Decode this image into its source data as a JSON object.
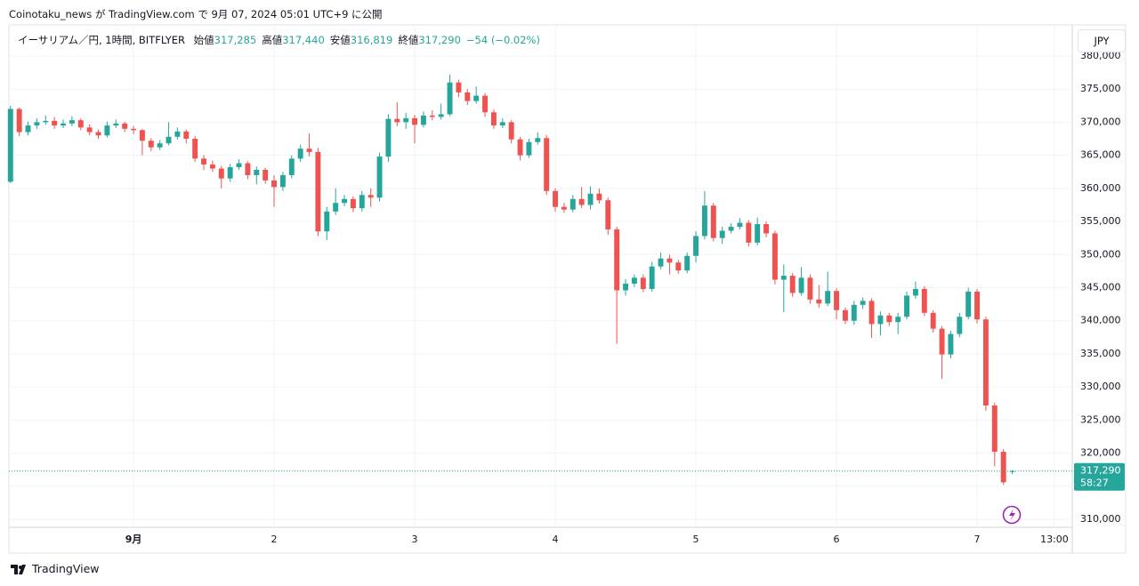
{
  "attribution": "Coinotaku_news が TradingView.com で 9月 07, 2024 05:01 UTC+9 に公開",
  "footer": "TradingView",
  "currency_button": "JPY",
  "chart_data": {
    "type": "candlestick",
    "symbol": "イーサリアム／円, 1時間, BITFLYER",
    "ohlc_legend": [
      {
        "label": "始値",
        "value": "317,285"
      },
      {
        "label": "高値",
        "value": "317,440"
      },
      {
        "label": "安値",
        "value": "316,819"
      },
      {
        "label": "終値",
        "value": "317,290"
      }
    ],
    "change": "−54 (−0.02%)",
    "last_price_label": "317,290",
    "countdown": "58:27",
    "up_color": "#26a69a",
    "down_color": "#ef5350",
    "open": [
      361000,
      372000,
      368500,
      369500,
      370000,
      370200,
      369500,
      369800,
      370300,
      369200,
      368500,
      368000,
      369500,
      369800,
      369000,
      368800,
      367200,
      366200,
      366800,
      367800,
      368600,
      367500,
      364500,
      363600,
      363000,
      361500,
      363200,
      363800,
      362000,
      362800,
      361200,
      360200,
      362000,
      364500,
      366000,
      365500,
      353500,
      356500,
      357800,
      358400,
      357000,
      359000,
      358600,
      364800,
      370500,
      370000,
      370600,
      369600,
      371000,
      370800,
      371200,
      376000,
      374500,
      373200,
      374000,
      371500,
      369500,
      370000,
      367400,
      365000,
      367000,
      367600,
      359600,
      357200,
      356800,
      358400,
      357500,
      359200,
      358200,
      353800,
      344600,
      345600,
      346500,
      344800,
      348200,
      349400,
      348800,
      347600,
      349800,
      352800,
      357400,
      352500,
      353600,
      354200,
      354800,
      351800,
      354600,
      353200,
      346200,
      346800,
      344200,
      346500,
      343200,
      342600,
      344500,
      341600,
      340000,
      342400,
      343000,
      339500,
      340800,
      339800,
      340600,
      343800,
      344800,
      341200,
      338800,
      334900,
      338000,
      340600,
      344400,
      340200,
      327200,
      320200,
      317285
    ],
    "high": [
      372500,
      372200,
      370100,
      370600,
      371000,
      370800,
      370400,
      370900,
      370600,
      369700,
      368900,
      370100,
      370400,
      370100,
      369400,
      369000,
      367600,
      367300,
      370000,
      369200,
      368900,
      367900,
      365000,
      364200,
      363400,
      363700,
      364400,
      364100,
      363300,
      363100,
      362000,
      362500,
      365000,
      366600,
      368300,
      366100,
      357200,
      360000,
      359000,
      358800,
      359600,
      360000,
      365400,
      371200,
      373000,
      371400,
      371100,
      371600,
      371800,
      372800,
      377200,
      376400,
      375000,
      375400,
      374400,
      371900,
      370600,
      370300,
      367800,
      367500,
      368500,
      368100,
      360000,
      357800,
      359000,
      360200,
      360300,
      360000,
      358600,
      354200,
      346300,
      347000,
      347000,
      348900,
      350300,
      350000,
      349200,
      350300,
      353500,
      359600,
      357800,
      354200,
      354700,
      355500,
      355200,
      355600,
      355000,
      353600,
      348500,
      347200,
      348100,
      347000,
      345400,
      347400,
      344900,
      342000,
      343000,
      343500,
      343400,
      341400,
      341200,
      341200,
      344400,
      345900,
      345200,
      341600,
      339200,
      338500,
      341200,
      345000,
      344800,
      340600,
      327600,
      320600,
      317440
    ],
    "low": [
      360800,
      367900,
      368000,
      369000,
      369600,
      369000,
      369100,
      369400,
      368800,
      368000,
      367500,
      367700,
      369100,
      368500,
      368200,
      365000,
      365600,
      365800,
      366500,
      367400,
      366800,
      364000,
      362800,
      362500,
      360000,
      361000,
      362800,
      361400,
      360600,
      360700,
      357200,
      359600,
      361500,
      364000,
      364800,
      352800,
      352200,
      356000,
      357300,
      356400,
      356500,
      357200,
      358000,
      364000,
      369400,
      369000,
      366800,
      369200,
      370300,
      370400,
      370900,
      373800,
      372600,
      372800,
      370800,
      369000,
      369100,
      366800,
      364200,
      364600,
      366600,
      359000,
      356500,
      356300,
      356400,
      357000,
      356800,
      357700,
      353000,
      336500,
      343800,
      345100,
      344300,
      344400,
      347800,
      347000,
      347100,
      347200,
      348800,
      352300,
      352000,
      351600,
      353200,
      353800,
      351200,
      351400,
      352600,
      345500,
      341300,
      343600,
      343800,
      342600,
      342000,
      342200,
      340200,
      339500,
      339400,
      341800,
      337400,
      337800,
      339200,
      338000,
      340200,
      343300,
      340700,
      338200,
      331200,
      334300,
      337500,
      340200,
      339600,
      326400,
      318000,
      315200,
      316819
    ],
    "close": [
      372000,
      368500,
      369500,
      370000,
      370200,
      369500,
      369800,
      370300,
      369200,
      368500,
      368000,
      369500,
      369800,
      369000,
      368800,
      367200,
      366200,
      366800,
      367800,
      368600,
      367500,
      364500,
      363600,
      363000,
      361500,
      363200,
      363800,
      362000,
      362800,
      361200,
      360200,
      362000,
      364500,
      366000,
      365500,
      353500,
      356500,
      357800,
      358400,
      357000,
      359000,
      358600,
      364800,
      370500,
      370000,
      370600,
      369600,
      371000,
      370800,
      371200,
      376000,
      374500,
      373200,
      374000,
      371500,
      369500,
      370000,
      367400,
      365000,
      367000,
      367600,
      359600,
      357200,
      356800,
      358400,
      357500,
      359200,
      358200,
      353800,
      344600,
      345600,
      346500,
      344800,
      348200,
      349400,
      348800,
      347600,
      349800,
      352800,
      357400,
      352500,
      353600,
      354200,
      354800,
      351800,
      354600,
      353200,
      346200,
      346800,
      344200,
      346500,
      343200,
      342600,
      344500,
      341600,
      340000,
      342400,
      343000,
      339500,
      340800,
      339800,
      340600,
      343800,
      344800,
      341200,
      338800,
      334900,
      338000,
      340600,
      344400,
      340200,
      327200,
      320200,
      315600,
      317290
    ],
    "xlim": [
      -0.18,
      120.83
    ],
    "xticks": [
      {
        "value": 14,
        "label": "9月"
      },
      {
        "value": 30,
        "label": "2"
      },
      {
        "value": 46,
        "label": "3"
      },
      {
        "value": 62,
        "label": "4"
      },
      {
        "value": 78,
        "label": "5"
      },
      {
        "value": 94,
        "label": "6"
      },
      {
        "value": 110,
        "label": "7"
      },
      {
        "value": 118.8,
        "label": "13:00"
      }
    ],
    "ylim": [
      308790,
      384700
    ],
    "yticks": [
      {
        "value": 310000,
        "label": "310,000"
      },
      {
        "value": 315000,
        "label": "315,000"
      },
      {
        "value": 320000,
        "label": "320,000"
      },
      {
        "value": 325000,
        "label": "325,000"
      },
      {
        "value": 330000,
        "label": "330,000"
      },
      {
        "value": 335000,
        "label": "335,000"
      },
      {
        "value": 340000,
        "label": "340,000"
      },
      {
        "value": 345000,
        "label": "345,000"
      },
      {
        "value": 350000,
        "label": "350,000"
      },
      {
        "value": 355000,
        "label": "355,000"
      },
      {
        "value": 360000,
        "label": "360,000"
      },
      {
        "value": 365000,
        "label": "365,000"
      },
      {
        "value": 370000,
        "label": "370,000"
      },
      {
        "value": 375000,
        "label": "375,000"
      },
      {
        "value": 380000,
        "label": "380,000"
      }
    ],
    "grid": true
  }
}
